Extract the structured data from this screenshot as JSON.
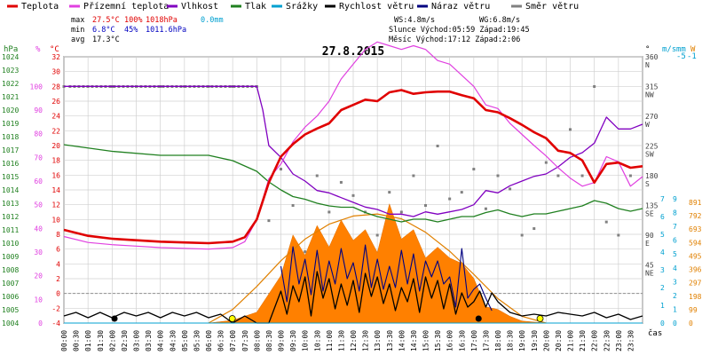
{
  "chart_data": {
    "type": "line",
    "title": "27.8.2015",
    "legend": [
      {
        "label": "Teplota",
        "color": "#e00000"
      },
      {
        "label": "Přízemní teplota",
        "color": "#e040e0"
      },
      {
        "label": "Vlhkost",
        "color": "#8000c0"
      },
      {
        "label": "Tlak",
        "color": "#208020"
      },
      {
        "label": "Srážky",
        "color": "#00a0d0"
      },
      {
        "label": "Rychlost větru",
        "color": "#000000"
      },
      {
        "label": "Náraz větru",
        "color": "#000080"
      },
      {
        "label": "Směr větru",
        "color": "#808080"
      }
    ],
    "stats": {
      "max_label": "max",
      "max_temp": "27.5°C",
      "max_hum": "100%",
      "max_press": "1018hPa",
      "rain": "0.0mm",
      "min_label": "min",
      "min_temp": "6.8°C",
      "min_hum": "45%",
      "min_press": "1011.6hPa",
      "avg_label": "avg",
      "avg_temp": "17.3°C",
      "ws": "WS:4.8m/s",
      "wg": "WG:6.8m/s",
      "sun": "Slunce Východ:05:59  Západ:19:45",
      "moon": "Měsíc  Východ:17:12  Západ:2:06"
    },
    "axes": {
      "hpa_label": "hPa",
      "pct_label": "%",
      "c_label": "°C",
      "deg_label": "°",
      "ms_label": "m/s",
      "mm_label": "mm",
      "w_label": "W",
      "x_label": "čas",
      "hpa_ticks": [
        "1024",
        "1023",
        "1022",
        "1021",
        "1020",
        "1019",
        "1018",
        "1017",
        "1016",
        "1015",
        "1014",
        "1013",
        "1012",
        "1011",
        "1010",
        "1009",
        "1008",
        "1007",
        "1006",
        "1005",
        "1004"
      ],
      "pct_ticks": [
        "100",
        "90",
        "80",
        "70",
        "60",
        "50",
        "40",
        "30",
        "20",
        "10",
        "0"
      ],
      "c_ticks": [
        "32",
        "30",
        "28",
        "26",
        "24",
        "22",
        "20",
        "18",
        "16",
        "14",
        "12",
        "10",
        "8",
        "6",
        "4",
        "2",
        "0",
        "-2",
        "-4"
      ],
      "dir_ticks": [
        "360",
        "N",
        "315",
        "NW",
        "270",
        "W",
        "225",
        "SW",
        "180",
        "S",
        "135",
        "SE",
        "90",
        "E",
        "45",
        "NE"
      ],
      "ms_top": "-5",
      "mm_top": "-1",
      "ms_ticks": [
        "7",
        "6",
        "5",
        "4",
        "3",
        "2",
        "1",
        "0"
      ],
      "mm_ticks": [
        "9",
        "8",
        "7",
        "6",
        "5",
        "4",
        "3",
        "2",
        "1",
        "0"
      ],
      "w_ticks": [
        "891",
        "792",
        "693",
        "594",
        "495",
        "396",
        "297",
        "198",
        "99",
        "0"
      ],
      "time_ticks": [
        "00:00",
        "00:30",
        "01:00",
        "01:30",
        "02:00",
        "02:30",
        "03:00",
        "03:30",
        "04:00",
        "04:30",
        "05:00",
        "05:30",
        "06:00",
        "06:30",
        "07:00",
        "07:30",
        "08:00",
        "08:30",
        "09:00",
        "09:30",
        "10:00",
        "10:30",
        "11:00",
        "11:30",
        "12:00",
        "12:30",
        "13:00",
        "13:30",
        "14:00",
        "14:30",
        "15:00",
        "15:30",
        "16:00",
        "16:30",
        "17:00",
        "17:30",
        "18:00",
        "18:30",
        "19:00",
        "19:30",
        "20:00",
        "20:30",
        "21:00",
        "21:30",
        "22:00",
        "22:30",
        "23:00",
        "23:30"
      ]
    },
    "series": [
      {
        "name": "Teplota",
        "unit": "°C",
        "color": "#e00000",
        "x": [
          0,
          1,
          2,
          3,
          4,
          5,
          6,
          7,
          7.5,
          8,
          8.5,
          9,
          9.5,
          10,
          10.5,
          11,
          11.5,
          12,
          12.5,
          13,
          13.5,
          14,
          14.5,
          15,
          15.5,
          16,
          16.5,
          17,
          17.5,
          18,
          18.5,
          19,
          19.5,
          20,
          20.5,
          21,
          21.5,
          22,
          22.5,
          23,
          23.5,
          24
        ],
        "y": [
          8.6,
          7.8,
          7.4,
          7.2,
          7,
          6.9,
          6.8,
          7,
          7.6,
          10,
          15,
          18.5,
          20.2,
          21.5,
          22.3,
          23,
          24.8,
          25.5,
          26.2,
          26,
          27.2,
          27.5,
          27,
          27.2,
          27.3,
          27.3,
          26.8,
          26.4,
          24.8,
          24.5,
          23.7,
          22.8,
          21.8,
          21,
          19.3,
          19,
          18,
          15,
          17.5,
          17.7,
          17,
          17.2
        ]
      },
      {
        "name": "Přízemní teplota",
        "unit": "°C",
        "color": "#e040e0",
        "x": [
          0,
          1,
          2,
          3,
          4,
          5,
          6,
          7,
          7.5,
          8,
          8.5,
          9,
          9.5,
          10,
          10.5,
          11,
          11.5,
          12,
          12.5,
          13,
          13.5,
          14,
          14.5,
          15,
          15.5,
          16,
          16.5,
          17,
          17.5,
          18,
          18.5,
          19,
          19.5,
          20,
          20.5,
          21,
          21.5,
          22,
          22.5,
          23,
          23.5,
          24
        ],
        "y": [
          7.7,
          6.9,
          6.6,
          6.4,
          6.2,
          6.1,
          6,
          6.2,
          7,
          10,
          15.5,
          17.5,
          20.5,
          22.5,
          24,
          26,
          29,
          31,
          33,
          34,
          33.5,
          33,
          33.5,
          33,
          31.5,
          31,
          29.5,
          28,
          25.5,
          25,
          23,
          21.5,
          20,
          18.6,
          17,
          15.6,
          14.5,
          15,
          18.5,
          17.8,
          14.5,
          15.8
        ]
      },
      {
        "name": "Vlhkost",
        "unit": "%",
        "color": "#8000c0",
        "x": [
          0,
          7,
          8,
          8.25,
          8.5,
          9,
          9.5,
          10,
          10.5,
          11,
          11.5,
          12,
          12.5,
          13,
          13.5,
          14,
          14.5,
          15,
          15.5,
          16,
          16.5,
          17,
          17.5,
          18,
          18.5,
          19,
          19.5,
          20,
          20.5,
          21,
          21.5,
          22,
          22.5,
          23,
          23.5,
          24
        ],
        "y": [
          100,
          100,
          100,
          90,
          75,
          70,
          63,
          60,
          56,
          55,
          53,
          51,
          49,
          48,
          46,
          46,
          45,
          47,
          46,
          47,
          48,
          50,
          56,
          55,
          58,
          60,
          62,
          63,
          66,
          70,
          72,
          76,
          87,
          82,
          82,
          84
        ]
      },
      {
        "name": "Tlak",
        "unit": "hPa",
        "color": "#208020",
        "x": [
          0,
          2,
          4,
          6,
          7,
          8,
          8.5,
          9,
          9.5,
          10,
          10.5,
          11,
          11.5,
          12,
          12.5,
          13,
          13.5,
          14,
          14.5,
          15,
          15.5,
          16,
          16.5,
          17,
          17.5,
          18,
          18.5,
          19,
          19.5,
          20,
          20.5,
          21,
          21.5,
          22,
          22.5,
          23,
          23.5,
          24
        ],
        "y": [
          1017.4,
          1016.9,
          1016.6,
          1016.6,
          1016.2,
          1015.4,
          1014.6,
          1014,
          1013.5,
          1013.3,
          1013,
          1012.8,
          1012.7,
          1012.7,
          1012.3,
          1012,
          1011.8,
          1011.6,
          1011.8,
          1011.8,
          1011.6,
          1011.8,
          1012,
          1012,
          1012.3,
          1012.5,
          1012.2,
          1012,
          1012.2,
          1012.2,
          1012.4,
          1012.6,
          1012.8,
          1013.2,
          1013,
          1012.6,
          1012.4,
          1012.6
        ]
      },
      {
        "name": "Srážky",
        "unit": "mm",
        "color": "#00a0d0",
        "x": [
          0,
          24
        ],
        "y": [
          0,
          0
        ]
      },
      {
        "name": "Rychlost větru",
        "unit": "m/s",
        "color": "#000000",
        "x": [
          0,
          0.5,
          1,
          1.5,
          2,
          2.5,
          3,
          3.5,
          4,
          4.5,
          5,
          5.5,
          6,
          6.5,
          7,
          7.5,
          8,
          8.5,
          9,
          9.25,
          9.5,
          9.75,
          10,
          10.25,
          10.5,
          10.75,
          11,
          11.25,
          11.5,
          11.75,
          12,
          12.25,
          12.5,
          12.75,
          13,
          13.25,
          13.5,
          13.75,
          14,
          14.25,
          14.5,
          14.75,
          15,
          15.25,
          15.5,
          15.75,
          16,
          16.25,
          16.5,
          16.75,
          17,
          17.25,
          17.5,
          17.75,
          18,
          18.5,
          19,
          19.5,
          20,
          20.5,
          21,
          21.5,
          22,
          22.5,
          23,
          23.5,
          24
        ],
        "y": [
          0.4,
          0.6,
          0.3,
          0.6,
          0.3,
          0.6,
          0.4,
          0.6,
          0.3,
          0.6,
          0.4,
          0.6,
          0.3,
          0.5,
          0,
          0.4,
          0,
          0,
          1.8,
          0.5,
          2.1,
          1.2,
          2.6,
          0.4,
          2.9,
          1.4,
          2.5,
          0.8,
          2.2,
          1,
          2.4,
          0.6,
          2.8,
          1.5,
          2.6,
          1.1,
          2.2,
          0.7,
          2,
          1.2,
          2.5,
          0.6,
          2.6,
          1.4,
          2.4,
          0.8,
          2.2,
          0.5,
          1.7,
          0.9,
          1.2,
          1.8,
          0.9,
          1.7,
          1.2,
          0.6,
          0.4,
          0.5,
          0.4,
          0.6,
          0.5,
          0.4,
          0.6,
          0.3,
          0.5,
          0.2,
          0.4
        ]
      },
      {
        "name": "Náraz větru",
        "unit": "m/s",
        "color": "#000080",
        "x": [
          9,
          9.25,
          9.5,
          9.75,
          10,
          10.25,
          10.5,
          10.75,
          11,
          11.25,
          11.5,
          11.75,
          12,
          12.25,
          12.5,
          12.75,
          13,
          13.25,
          13.5,
          13.75,
          14,
          14.25,
          14.5,
          14.75,
          15,
          15.25,
          15.5,
          15.75,
          16,
          16.25,
          16.5,
          16.75,
          17,
          17.25,
          17.5,
          17.75
        ],
        "y": [
          3.2,
          1.2,
          4.3,
          2.2,
          3.6,
          1.6,
          4.1,
          1.8,
          3.5,
          2.2,
          4.2,
          2.5,
          3.4,
          1.8,
          4.4,
          2,
          3.6,
          1.9,
          3.2,
          2,
          4.1,
          2.2,
          3.9,
          1.8,
          3.5,
          2.6,
          3.5,
          2.2,
          2.6,
          0.9,
          4.2,
          1.4,
          1.9,
          2.2,
          1.4,
          0.7
        ]
      },
      {
        "name": "Směr větru",
        "unit": "°",
        "color": "#808080",
        "x": [
          0,
          1,
          2,
          3,
          4,
          5,
          6,
          7,
          8,
          8.5,
          9,
          9.5,
          10,
          10.5,
          11,
          11.5,
          12,
          12.5,
          13,
          13.5,
          14,
          14.5,
          15,
          15.5,
          16,
          16.5,
          17,
          17.5,
          18,
          18.5,
          19,
          19.5,
          20,
          20.5,
          21,
          21.5,
          22,
          22.5,
          23,
          23.5
        ],
        "y": [
          315,
          315,
          315,
          315,
          315,
          315,
          315,
          315,
          315,
          112,
          190,
          135,
          65,
          180,
          125,
          170,
          150,
          125,
          90,
          155,
          125,
          180,
          135,
          225,
          145,
          155,
          190,
          130,
          180,
          160,
          90,
          100,
          200,
          180,
          250,
          180,
          315,
          110,
          90,
          180
        ]
      },
      {
        "name": "Sluneční záření",
        "unit": "W",
        "color": "#ff8000",
        "x": [
          6,
          7,
          8,
          9,
          9.5,
          10,
          10.5,
          11,
          11.5,
          12,
          12.5,
          13,
          13.5,
          14,
          14.5,
          15,
          15.5,
          16,
          16.5,
          17,
          17.5,
          18,
          18.5,
          19,
          20
        ],
        "y": [
          0,
          20,
          80,
          350,
          650,
          500,
          720,
          560,
          760,
          610,
          690,
          520,
          880,
          620,
          690,
          480,
          560,
          480,
          440,
          330,
          120,
          100,
          50,
          15,
          0
        ]
      },
      {
        "name": "Sluneční záření (max)",
        "unit": "W",
        "color": "#e08000",
        "x": [
          6,
          7,
          8,
          9,
          10,
          11,
          12,
          13,
          14,
          15,
          16,
          17,
          18,
          19,
          20
        ],
        "y": [
          0,
          100,
          270,
          460,
          620,
          730,
          790,
          805,
          770,
          670,
          530,
          360,
          180,
          50,
          0
        ]
      }
    ]
  }
}
